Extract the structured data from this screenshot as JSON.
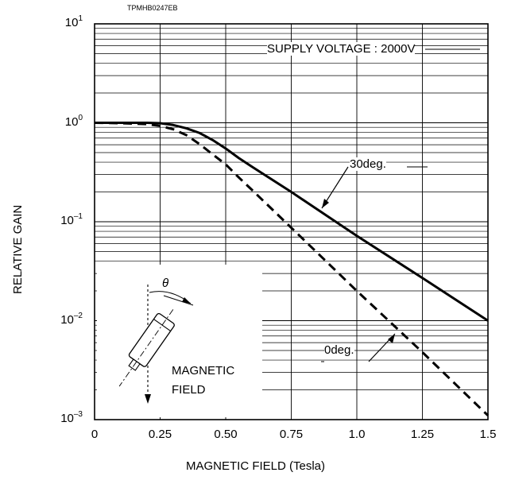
{
  "figure_code": "TPMHB0247EB",
  "chart_data": {
    "type": "line",
    "xlabel": "MAGNETIC FIELD (Tesla)",
    "ylabel": "RELATIVE GAIN",
    "xlim": [
      0,
      1.5
    ],
    "ylim": [
      0.001,
      10
    ],
    "yscale": "log",
    "grid": true,
    "x_ticks": [
      "0",
      "0.25",
      "0.50",
      "0.75",
      "1.0",
      "1.25",
      "1.5"
    ],
    "x_tick_values": [
      0,
      0.25,
      0.5,
      0.75,
      1.0,
      1.25,
      1.5
    ],
    "y_ticks": [
      {
        "base": "10",
        "exp": "1"
      },
      {
        "base": "10",
        "exp": "0"
      },
      {
        "base": "10",
        "exp": "–1"
      },
      {
        "base": "10",
        "exp": "–2"
      },
      {
        "base": "10",
        "exp": "–3"
      }
    ],
    "annotation": "SUPPLY VOLTAGE : 2000V",
    "series": [
      {
        "name": "30deg.",
        "style": "solid",
        "x": [
          0,
          0.1,
          0.2,
          0.25,
          0.3,
          0.35,
          0.4,
          0.45,
          0.5,
          0.55,
          0.6,
          0.75,
          1.0,
          1.25,
          1.5
        ],
        "y": [
          1.0,
          1.0,
          1.0,
          0.99,
          0.95,
          0.88,
          0.79,
          0.67,
          0.55,
          0.44,
          0.36,
          0.2,
          0.072,
          0.027,
          0.01
        ]
      },
      {
        "name": "0deg.",
        "style": "dashed",
        "x": [
          0,
          0.1,
          0.2,
          0.25,
          0.3,
          0.35,
          0.4,
          0.45,
          0.5,
          0.55,
          0.6,
          0.75,
          1.0,
          1.25,
          1.5
        ],
        "y": [
          1.0,
          0.99,
          0.97,
          0.93,
          0.86,
          0.75,
          0.61,
          0.48,
          0.38,
          0.28,
          0.21,
          0.087,
          0.02,
          0.0048,
          0.0011
        ]
      }
    ]
  },
  "inset": {
    "theta": "θ",
    "field_line1": "MAGNETIC",
    "field_line2": "FIELD"
  }
}
